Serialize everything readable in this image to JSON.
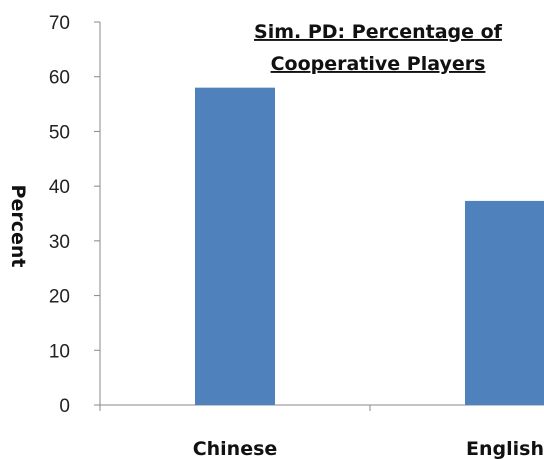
{
  "chart_data": {
    "type": "bar",
    "title": [
      "Sim. PD: Percentage of",
      "Cooperative Players"
    ],
    "xlabel": "",
    "ylabel": "Percent",
    "categories": [
      "Chinese",
      "English"
    ],
    "values": [
      58,
      37.3
    ],
    "ylim": [
      0,
      70
    ],
    "yticks": [
      0,
      10,
      20,
      30,
      40,
      50,
      60,
      70
    ],
    "grid": false,
    "legend": "none",
    "bar_color": "#4f81bd"
  }
}
